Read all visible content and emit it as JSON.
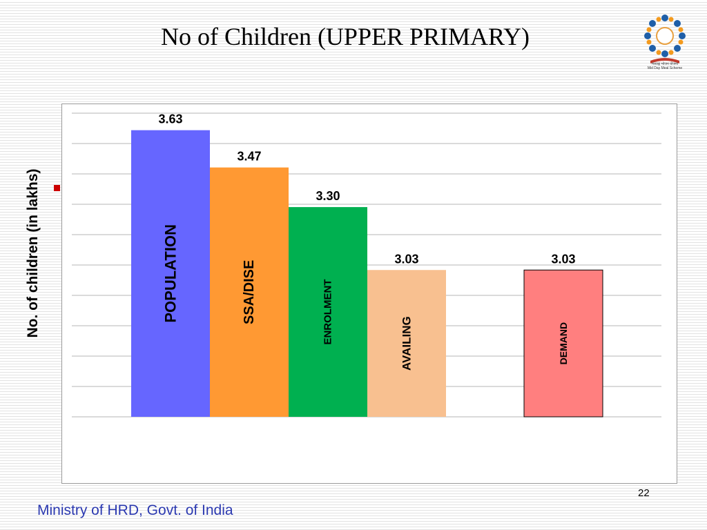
{
  "slide": {
    "title": "No of Children  (UPPER PRIMARY)",
    "page_number": "22",
    "footer": "Ministry of HRD, Govt. of India",
    "logo_text": "मध्याह्न भोजन योजना",
    "logo_subtext": "Mid Day Meal Scheme"
  },
  "chart_data": {
    "type": "bar",
    "ylabel": "No. of children (in lakhs)",
    "categories": [
      "POPULATION",
      "SSA/DISE",
      "ENROLMENT",
      "AVAILING",
      "DEMAND"
    ],
    "values": [
      3.63,
      3.47,
      3.3,
      3.03,
      3.03
    ],
    "value_labels": [
      "3.63",
      "3.47",
      "3.30",
      "3.03",
      "3.03"
    ],
    "colors": [
      "#6666ff",
      "#ff9933",
      "#00b050",
      "#f8c090",
      "#ff7f7f"
    ],
    "ylim": [
      2.4,
      3.7
    ],
    "grid": true,
    "legend": "none"
  }
}
